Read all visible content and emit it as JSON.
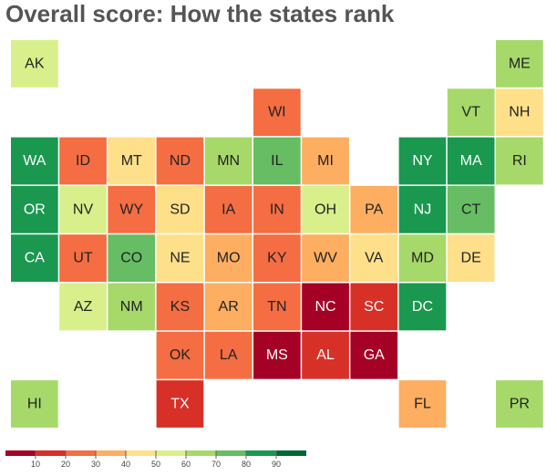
{
  "page_title": "Overall score: How the states rank",
  "chart_data": {
    "type": "heatmap",
    "title": "Overall score: How the states rank",
    "layout": "state tile grid map",
    "color_scale": {
      "domain": [
        0,
        100
      ],
      "step": 10,
      "colors": [
        "#a50026",
        "#d73027",
        "#f46d43",
        "#fdae61",
        "#fee08b",
        "#d9ef8b",
        "#a6d96a",
        "#66bd63",
        "#1a9850",
        "#006837"
      ],
      "ticks": [
        10,
        20,
        30,
        40,
        50,
        60,
        70,
        80,
        90
      ]
    },
    "states": [
      {
        "code": "AK",
        "row": 0,
        "col": 0,
        "value": 55
      },
      {
        "code": "ME",
        "row": 0,
        "col": 10,
        "value": 65
      },
      {
        "code": "WI",
        "row": 1,
        "col": 5,
        "value": 25
      },
      {
        "code": "VT",
        "row": 1,
        "col": 9,
        "value": 65
      },
      {
        "code": "NH",
        "row": 1,
        "col": 10,
        "value": 45
      },
      {
        "code": "WA",
        "row": 2,
        "col": 0,
        "value": 85
      },
      {
        "code": "ID",
        "row": 2,
        "col": 1,
        "value": 25
      },
      {
        "code": "MT",
        "row": 2,
        "col": 2,
        "value": 45
      },
      {
        "code": "ND",
        "row": 2,
        "col": 3,
        "value": 25
      },
      {
        "code": "MN",
        "row": 2,
        "col": 4,
        "value": 65
      },
      {
        "code": "IL",
        "row": 2,
        "col": 5,
        "value": 75
      },
      {
        "code": "MI",
        "row": 2,
        "col": 6,
        "value": 35
      },
      {
        "code": "NY",
        "row": 2,
        "col": 8,
        "value": 85
      },
      {
        "code": "MA",
        "row": 2,
        "col": 9,
        "value": 85
      },
      {
        "code": "RI",
        "row": 2,
        "col": 10,
        "value": 65
      },
      {
        "code": "OR",
        "row": 3,
        "col": 0,
        "value": 85
      },
      {
        "code": "NV",
        "row": 3,
        "col": 1,
        "value": 55
      },
      {
        "code": "WY",
        "row": 3,
        "col": 2,
        "value": 25
      },
      {
        "code": "SD",
        "row": 3,
        "col": 3,
        "value": 45
      },
      {
        "code": "IA",
        "row": 3,
        "col": 4,
        "value": 25
      },
      {
        "code": "IN",
        "row": 3,
        "col": 5,
        "value": 25
      },
      {
        "code": "OH",
        "row": 3,
        "col": 6,
        "value": 55
      },
      {
        "code": "PA",
        "row": 3,
        "col": 7,
        "value": 35
      },
      {
        "code": "NJ",
        "row": 3,
        "col": 8,
        "value": 85
      },
      {
        "code": "CT",
        "row": 3,
        "col": 9,
        "value": 75
      },
      {
        "code": "CA",
        "row": 4,
        "col": 0,
        "value": 85
      },
      {
        "code": "UT",
        "row": 4,
        "col": 1,
        "value": 25
      },
      {
        "code": "CO",
        "row": 4,
        "col": 2,
        "value": 75
      },
      {
        "code": "NE",
        "row": 4,
        "col": 3,
        "value": 45
      },
      {
        "code": "MO",
        "row": 4,
        "col": 4,
        "value": 35
      },
      {
        "code": "KY",
        "row": 4,
        "col": 5,
        "value": 25
      },
      {
        "code": "WV",
        "row": 4,
        "col": 6,
        "value": 35
      },
      {
        "code": "VA",
        "row": 4,
        "col": 7,
        "value": 45
      },
      {
        "code": "MD",
        "row": 4,
        "col": 8,
        "value": 65
      },
      {
        "code": "DE",
        "row": 4,
        "col": 9,
        "value": 45
      },
      {
        "code": "AZ",
        "row": 5,
        "col": 1,
        "value": 55
      },
      {
        "code": "NM",
        "row": 5,
        "col": 2,
        "value": 65
      },
      {
        "code": "KS",
        "row": 5,
        "col": 3,
        "value": 25
      },
      {
        "code": "AR",
        "row": 5,
        "col": 4,
        "value": 35
      },
      {
        "code": "TN",
        "row": 5,
        "col": 5,
        "value": 25
      },
      {
        "code": "NC",
        "row": 5,
        "col": 6,
        "value": 5
      },
      {
        "code": "SC",
        "row": 5,
        "col": 7,
        "value": 15
      },
      {
        "code": "DC",
        "row": 5,
        "col": 8,
        "value": 85
      },
      {
        "code": "OK",
        "row": 6,
        "col": 3,
        "value": 25
      },
      {
        "code": "LA",
        "row": 6,
        "col": 4,
        "value": 25
      },
      {
        "code": "MS",
        "row": 6,
        "col": 5,
        "value": 5
      },
      {
        "code": "AL",
        "row": 6,
        "col": 6,
        "value": 15
      },
      {
        "code": "GA",
        "row": 6,
        "col": 7,
        "value": 5
      },
      {
        "code": "HI",
        "row": 7,
        "col": 0,
        "value": 65
      },
      {
        "code": "TX",
        "row": 7,
        "col": 3,
        "value": 15
      },
      {
        "code": "FL",
        "row": 7,
        "col": 8,
        "value": 35
      },
      {
        "code": "PR",
        "row": 7,
        "col": 10,
        "value": 65
      }
    ]
  }
}
